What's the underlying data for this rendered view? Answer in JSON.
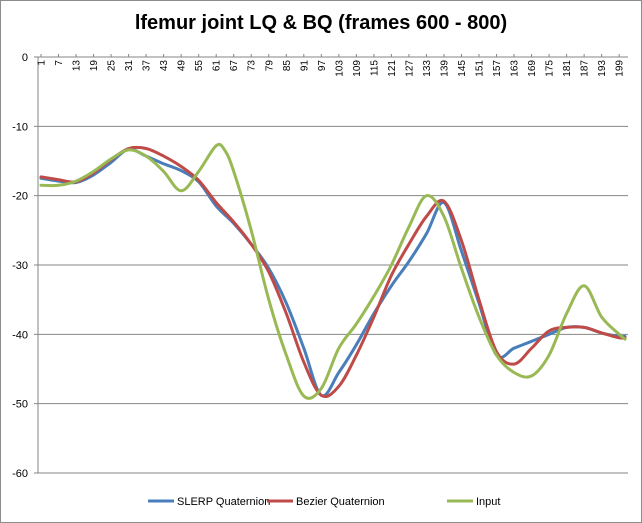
{
  "chart_data": {
    "type": "line",
    "title": "lfemur joint  LQ & BQ (frames 600 - 800)",
    "xlabel": "",
    "ylabel": "",
    "ylim": [
      -60,
      0
    ],
    "yticks": [
      0,
      -10,
      -20,
      -30,
      -40,
      -50,
      -60
    ],
    "x_range": [
      1,
      201
    ],
    "x_tick_labels": [
      "1",
      "7",
      "13",
      "19",
      "25",
      "31",
      "37",
      "43",
      "49",
      "55",
      "61",
      "67",
      "73",
      "79",
      "85",
      "91",
      "97",
      "103",
      "109",
      "115",
      "121",
      "127",
      "133",
      "139",
      "145",
      "151",
      "157",
      "163",
      "169",
      "175",
      "181",
      "187",
      "193",
      "199"
    ],
    "grid": "horizontal",
    "legend_position": "bottom",
    "series": [
      {
        "name": "SLERP Quaternion",
        "color": "#4a7ebb",
        "points": [
          [
            1,
            -17.5
          ],
          [
            7,
            -17.9
          ],
          [
            13,
            -18.1
          ],
          [
            19,
            -17.0
          ],
          [
            25,
            -15.2
          ],
          [
            31,
            -13.3
          ],
          [
            37,
            -14.3
          ],
          [
            43,
            -15.4
          ],
          [
            49,
            -16.4
          ],
          [
            55,
            -18.0
          ],
          [
            61,
            -21.5
          ],
          [
            67,
            -24.0
          ],
          [
            73,
            -27.0
          ],
          [
            79,
            -30.5
          ],
          [
            85,
            -35.5
          ],
          [
            91,
            -42.0
          ],
          [
            97,
            -48.8
          ],
          [
            103,
            -45.5
          ],
          [
            109,
            -41.5
          ],
          [
            115,
            -37.0
          ],
          [
            121,
            -33.0
          ],
          [
            127,
            -29.5
          ],
          [
            133,
            -25.5
          ],
          [
            139,
            -21.0
          ],
          [
            145,
            -28.0
          ],
          [
            151,
            -35.5
          ],
          [
            157,
            -43.0
          ],
          [
            163,
            -42.0
          ],
          [
            169,
            -41.0
          ],
          [
            175,
            -40.0
          ],
          [
            181,
            -39.0
          ],
          [
            187,
            -39.0
          ],
          [
            193,
            -39.8
          ],
          [
            199,
            -40.3
          ],
          [
            201,
            -40.3
          ]
        ]
      },
      {
        "name": "Bezier Quaternion",
        "color": "#be4b48",
        "points": [
          [
            1,
            -17.3
          ],
          [
            7,
            -17.7
          ],
          [
            13,
            -18.0
          ],
          [
            19,
            -16.7
          ],
          [
            25,
            -14.8
          ],
          [
            31,
            -13.2
          ],
          [
            37,
            -13.2
          ],
          [
            43,
            -14.3
          ],
          [
            49,
            -15.8
          ],
          [
            55,
            -17.8
          ],
          [
            61,
            -21.0
          ],
          [
            67,
            -23.8
          ],
          [
            73,
            -27.0
          ],
          [
            79,
            -31.0
          ],
          [
            85,
            -37.0
          ],
          [
            91,
            -44.0
          ],
          [
            97,
            -48.8
          ],
          [
            103,
            -47.5
          ],
          [
            109,
            -43.0
          ],
          [
            115,
            -37.5
          ],
          [
            121,
            -31.5
          ],
          [
            127,
            -27.0
          ],
          [
            133,
            -23.0
          ],
          [
            139,
            -20.8
          ],
          [
            145,
            -26.5
          ],
          [
            151,
            -35.0
          ],
          [
            157,
            -42.5
          ],
          [
            163,
            -44.3
          ],
          [
            169,
            -42.0
          ],
          [
            175,
            -39.5
          ],
          [
            181,
            -39.0
          ],
          [
            187,
            -39.0
          ],
          [
            193,
            -39.8
          ],
          [
            199,
            -40.5
          ],
          [
            201,
            -40.5
          ]
        ]
      },
      {
        "name": "Input",
        "color": "#98b954",
        "points": [
          [
            1,
            -18.5
          ],
          [
            7,
            -18.5
          ],
          [
            13,
            -17.9
          ],
          [
            19,
            -16.5
          ],
          [
            25,
            -14.7
          ],
          [
            31,
            -13.4
          ],
          [
            37,
            -14.3
          ],
          [
            43,
            -16.5
          ],
          [
            49,
            -19.3
          ],
          [
            55,
            -16.5
          ],
          [
            61,
            -12.8
          ],
          [
            64,
            -13.5
          ],
          [
            67,
            -16.5
          ],
          [
            73,
            -25.0
          ],
          [
            79,
            -35.0
          ],
          [
            85,
            -43.0
          ],
          [
            91,
            -48.9
          ],
          [
            97,
            -47.8
          ],
          [
            103,
            -42.0
          ],
          [
            109,
            -38.5
          ],
          [
            115,
            -34.5
          ],
          [
            121,
            -30.0
          ],
          [
            127,
            -24.5
          ],
          [
            133,
            -20.0
          ],
          [
            139,
            -23.0
          ],
          [
            145,
            -30.5
          ],
          [
            151,
            -37.5
          ],
          [
            157,
            -43.0
          ],
          [
            163,
            -45.5
          ],
          [
            169,
            -46.0
          ],
          [
            175,
            -43.0
          ],
          [
            181,
            -37.0
          ],
          [
            187,
            -33.0
          ],
          [
            193,
            -37.5
          ],
          [
            199,
            -40.0
          ],
          [
            201,
            -40.7
          ]
        ]
      }
    ]
  }
}
